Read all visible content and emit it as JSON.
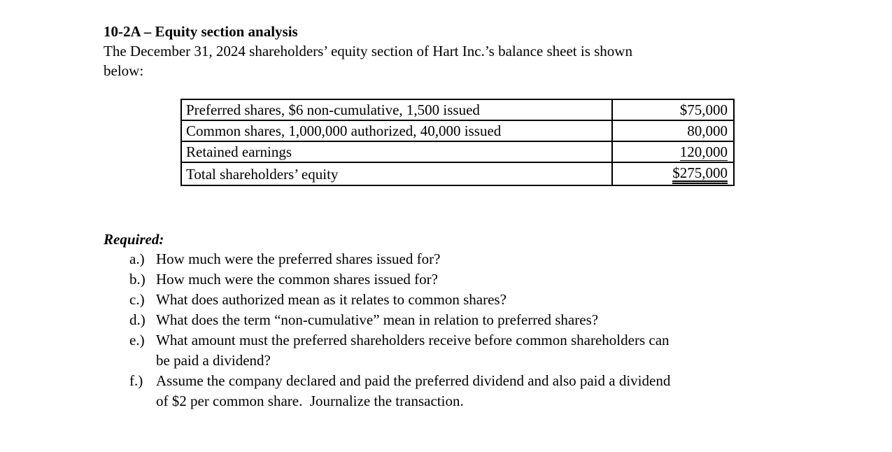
{
  "doc": {
    "title": "10-2A – Equity section analysis",
    "intro_lines": [
      "The December 31, 2024 shareholders’ equity section of Hart Inc.’s balance sheet is shown",
      "below:"
    ]
  },
  "table": {
    "rows": [
      {
        "label": "Preferred shares, $6 non-cumulative, 1,500 issued",
        "amount": "$75,000",
        "underline": "none"
      },
      {
        "label": "Common shares, 1,000,000 authorized, 40,000 issued",
        "amount": "80,000",
        "underline": "none"
      },
      {
        "label": "Retained earnings",
        "amount": "120,000",
        "underline": "single"
      },
      {
        "label": "Total shareholders’ equity",
        "amount": "$275,000",
        "underline": "double"
      }
    ]
  },
  "required": {
    "heading": "Required:",
    "items": [
      {
        "label": "a.)",
        "lines": [
          "How much were the preferred shares issued for?"
        ]
      },
      {
        "label": "b.)",
        "lines": [
          "How much were the common shares issued for?"
        ]
      },
      {
        "label": "c.)",
        "lines": [
          "What does authorized mean as it relates to common shares?"
        ]
      },
      {
        "label": "d.)",
        "lines": [
          "What does the term “non-cumulative” mean in relation to preferred shares?"
        ]
      },
      {
        "label": "e.)",
        "lines": [
          "What amount must the preferred shareholders receive before common shareholders can",
          "be paid a dividend?"
        ]
      },
      {
        "label": "f.)",
        "lines": [
          "Assume the company declared and paid the preferred dividend and also paid a dividend",
          "of $2 per common share.  Journalize the transaction."
        ]
      }
    ]
  }
}
